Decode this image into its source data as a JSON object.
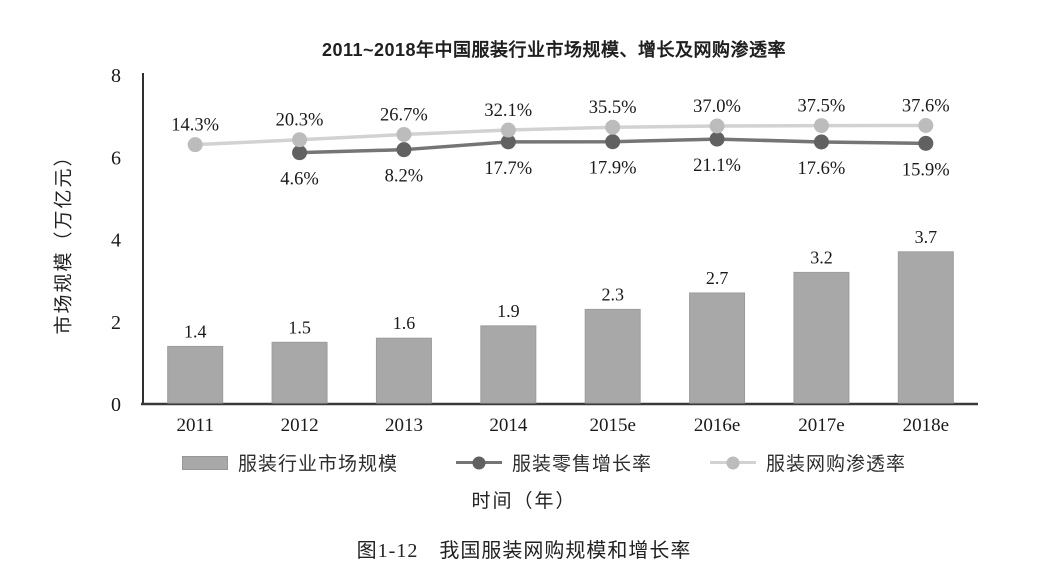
{
  "figure": {
    "title": "2011~2018年中国服装行业市场规模、增长及网购渗透率",
    "ylabel": "市场规模（万亿元）",
    "xlabel": "时间（年）",
    "caption": "图1-12　我国服装网购规模和增长率"
  },
  "legend": {
    "items": [
      {
        "label": "服装行业市场规模",
        "marker": "bar-swatch",
        "name": "legend-item-market-size",
        "color": "#a8a8a8",
        "dot_color": "#a8a8a8"
      },
      {
        "label": "服装零售增长率",
        "marker": "line-dot",
        "name": "legend-item-retail-growth",
        "color": "#757575",
        "dot_color": "#616161"
      },
      {
        "label": "服装网购渗透率",
        "marker": "line-dot",
        "name": "legend-item-online-penetration",
        "color": "#d2d2d2",
        "dot_color": "#bcbcbc"
      }
    ]
  },
  "chart_data": {
    "type": "bar",
    "title": "2011~2018年中国服装行业市场规模、增长及网购渗透率",
    "xlabel": "时间（年）",
    "ylabel": "市场规模（万亿元）",
    "categories": [
      "2011",
      "2012",
      "2013",
      "2014",
      "2015e",
      "2016e",
      "2017e",
      "2018e"
    ],
    "ylim": [
      0,
      8
    ],
    "yticks": [
      "8",
      "6",
      "4",
      "2",
      "0"
    ],
    "ytick_values": [
      8,
      6,
      4,
      2,
      0
    ],
    "grid": false,
    "legend_position": "bottom",
    "series": [
      {
        "name": "服装行业市场规模",
        "type": "bar",
        "unit": "万亿元",
        "color": "#a8a8a8",
        "edge_color": "#9c9c9c",
        "values": [
          1.4,
          1.5,
          1.6,
          1.9,
          2.3,
          2.7,
          3.2,
          3.7
        ],
        "labels": [
          "1.4",
          "1.5",
          "1.6",
          "1.9",
          "2.3",
          "2.7",
          "3.2",
          "3.7"
        ]
      },
      {
        "name": "服装零售增长率",
        "type": "line",
        "unit": "%",
        "color": "#757575",
        "dot_color": "#616161",
        "values": [
          null,
          4.6,
          8.2,
          17.7,
          17.9,
          21.1,
          17.6,
          15.9
        ],
        "labels": [
          null,
          "4.6%",
          "8.2%",
          "17.7%",
          "17.9%",
          "21.1%",
          "17.6%",
          "15.9%"
        ],
        "label_position": "below"
      },
      {
        "name": "服装网购渗透率",
        "type": "line",
        "unit": "%",
        "color": "#d2d2d2",
        "dot_color": "#bcbcbc",
        "values": [
          14.3,
          20.3,
          26.7,
          32.1,
          35.5,
          37.0,
          37.5,
          37.6
        ],
        "labels": [
          "14.3%",
          "20.3%",
          "26.7%",
          "32.1%",
          "35.5%",
          "37.0%",
          "37.5%",
          "37.6%"
        ],
        "label_position": "above"
      }
    ],
    "line_axis_mapping": {
      "note": "percent lines drawn against primary axis",
      "base": 6.02,
      "scale": 0.02
    }
  }
}
